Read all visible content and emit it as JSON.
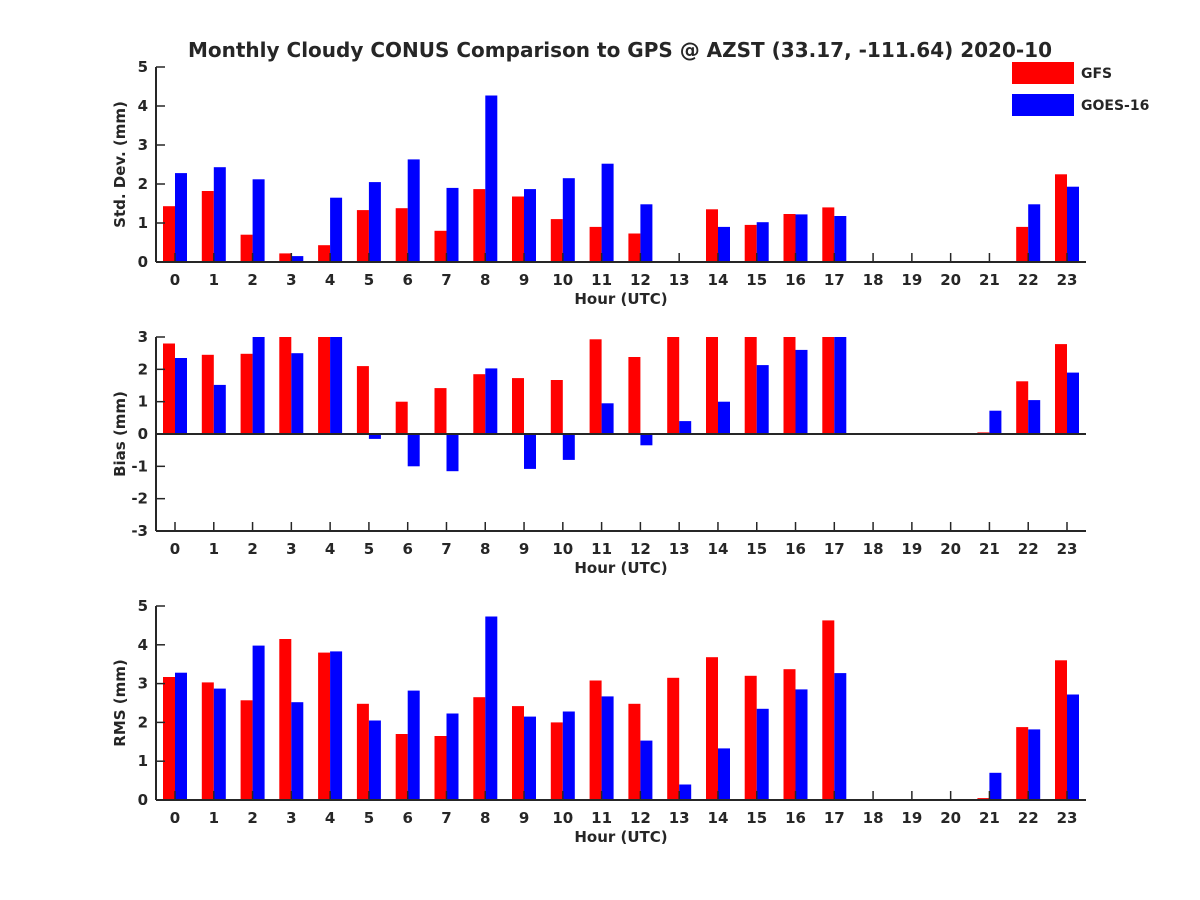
{
  "figure": {
    "title": "Monthly Cloudy CONUS Comparison to GPS @ AZST (33.17, -111.64) 2020-10"
  },
  "legend": {
    "placement": "top-right",
    "entries": [
      {
        "name": "GFS",
        "color": "#ff0000"
      },
      {
        "name": "GOES-16",
        "color": "#0000ff"
      }
    ]
  },
  "chart_data": [
    {
      "type": "bar",
      "categories": [
        "0",
        "1",
        "2",
        "3",
        "4",
        "5",
        "6",
        "7",
        "8",
        "9",
        "10",
        "11",
        "12",
        "13",
        "14",
        "15",
        "16",
        "17",
        "18",
        "19",
        "20",
        "21",
        "22",
        "23"
      ],
      "xlabel": "Hour (UTC)",
      "ylabel": "Std. Dev. (mm)",
      "ylim": [
        0,
        5
      ],
      "yticks": [
        "0",
        "1",
        "2",
        "3",
        "4",
        "5"
      ],
      "grid": false,
      "series": [
        {
          "name": "GFS",
          "color": "#ff0000",
          "values": [
            1.43,
            1.82,
            0.7,
            0.22,
            0.43,
            1.33,
            1.38,
            0.8,
            1.87,
            1.68,
            1.1,
            0.9,
            0.73,
            0,
            1.35,
            0.95,
            1.23,
            1.4,
            0,
            0,
            0,
            0,
            0.9,
            2.25
          ]
        },
        {
          "name": "GOES-16",
          "color": "#0000ff",
          "values": [
            2.28,
            2.43,
            2.12,
            0.15,
            1.65,
            2.05,
            2.63,
            1.9,
            4.27,
            1.87,
            2.15,
            2.52,
            1.48,
            0,
            0.9,
            1.02,
            1.22,
            1.18,
            0,
            0,
            0,
            0,
            1.48,
            1.93
          ]
        }
      ]
    },
    {
      "type": "bar",
      "categories": [
        "0",
        "1",
        "2",
        "3",
        "4",
        "5",
        "6",
        "7",
        "8",
        "9",
        "10",
        "11",
        "12",
        "13",
        "14",
        "15",
        "16",
        "17",
        "18",
        "19",
        "20",
        "21",
        "22",
        "23"
      ],
      "xlabel": "Hour (UTC)",
      "ylabel": "Bias (mm)",
      "ylim": [
        -3,
        3
      ],
      "yticks": [
        "-3",
        "-2",
        "-1",
        "0",
        "1",
        "2",
        "3"
      ],
      "grid": false,
      "series": [
        {
          "name": "GFS",
          "color": "#ff0000",
          "values": [
            2.8,
            2.45,
            2.48,
            3.0,
            3.0,
            2.1,
            1.0,
            1.42,
            1.85,
            1.73,
            1.67,
            2.93,
            2.38,
            3.0,
            3.0,
            3.0,
            3.0,
            3.0,
            0,
            0,
            0,
            0.05,
            1.63,
            2.78
          ]
        },
        {
          "name": "GOES-16",
          "color": "#0000ff",
          "values": [
            2.35,
            1.52,
            3.0,
            2.5,
            3.0,
            -0.15,
            -1.0,
            -1.15,
            2.03,
            -1.08,
            -0.8,
            0.95,
            -0.35,
            0.4,
            1.0,
            2.13,
            2.6,
            3.0,
            0,
            0,
            0,
            0.72,
            1.05,
            1.9
          ]
        }
      ]
    },
    {
      "type": "bar",
      "categories": [
        "0",
        "1",
        "2",
        "3",
        "4",
        "5",
        "6",
        "7",
        "8",
        "9",
        "10",
        "11",
        "12",
        "13",
        "14",
        "15",
        "16",
        "17",
        "18",
        "19",
        "20",
        "21",
        "22",
        "23"
      ],
      "xlabel": "Hour (UTC)",
      "ylabel": "RMS (mm)",
      "ylim": [
        0,
        5
      ],
      "yticks": [
        "0",
        "1",
        "2",
        "3",
        "4",
        "5"
      ],
      "grid": false,
      "series": [
        {
          "name": "GFS",
          "color": "#ff0000",
          "values": [
            3.17,
            3.03,
            2.57,
            4.15,
            3.8,
            2.48,
            1.7,
            1.65,
            2.65,
            2.42,
            2.0,
            3.08,
            2.48,
            3.15,
            3.68,
            3.2,
            3.37,
            4.63,
            0,
            0,
            0,
            0.05,
            1.88,
            3.6
          ]
        },
        {
          "name": "GOES-16",
          "color": "#0000ff",
          "values": [
            3.28,
            2.87,
            3.98,
            2.52,
            3.83,
            2.05,
            2.82,
            2.23,
            4.73,
            2.15,
            2.28,
            2.67,
            1.53,
            0.4,
            1.33,
            2.35,
            2.85,
            3.27,
            0,
            0,
            0,
            0.7,
            1.82,
            2.72
          ]
        }
      ]
    }
  ]
}
